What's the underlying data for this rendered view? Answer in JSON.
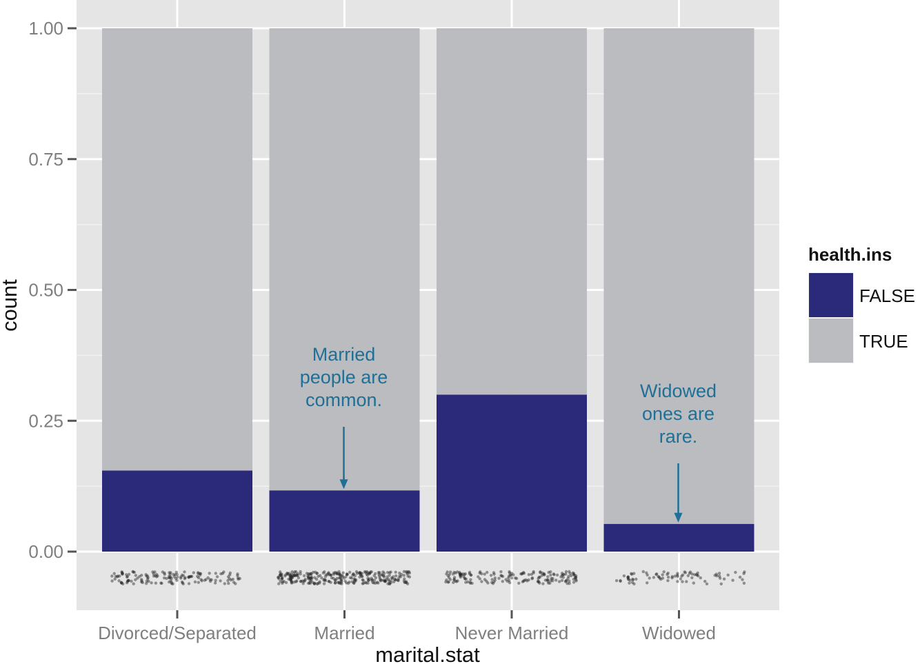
{
  "chart_data": {
    "type": "bar",
    "stacked": true,
    "categories": [
      "Divorced/Separated",
      "Married",
      "Never Married",
      "Widowed"
    ],
    "series": [
      {
        "name": "FALSE",
        "values": [
          0.155,
          0.117,
          0.3,
          0.053
        ],
        "color": "#2b2a7a"
      },
      {
        "name": "TRUE",
        "values": [
          0.845,
          0.883,
          0.7,
          0.947
        ],
        "color": "#bbbcbf"
      }
    ],
    "xlabel": "marital.stat",
    "ylabel": "count",
    "ylim": [
      0,
      1
    ],
    "yticks": [
      "0.00",
      "0.25",
      "0.50",
      "0.75",
      "1.00"
    ],
    "grid": true,
    "legend": {
      "title": "health.ins",
      "position": "right",
      "entries": [
        "FALSE",
        "TRUE"
      ]
    },
    "rug": {
      "relative_density": [
        0.45,
        1.0,
        0.55,
        0.2
      ]
    },
    "annotations": [
      {
        "category": "Married",
        "text": [
          "Married",
          "people are",
          "common."
        ],
        "y": 0.117
      },
      {
        "category": "Widowed",
        "text": [
          "Widowed",
          "ones are",
          "rare."
        ],
        "y": 0.053
      }
    ]
  }
}
